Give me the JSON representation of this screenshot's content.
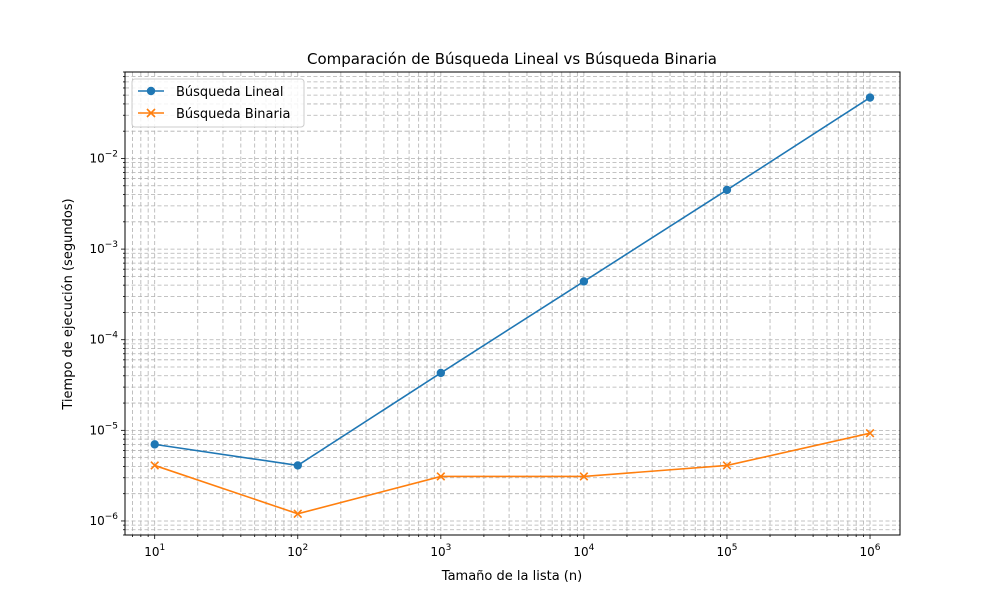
{
  "chart_data": {
    "type": "line",
    "title": "Comparación de Búsqueda Lineal vs Búsqueda Binaria",
    "xlabel": "Tamaño de la lista (n)",
    "ylabel": "Tiempo de ejecución (segundos)",
    "xscale": "log",
    "yscale": "log",
    "xlim": [
      6.2,
      1620000
    ],
    "ylim": [
      7e-07,
      0.09
    ],
    "x": [
      10,
      100,
      1000,
      10000,
      100000,
      1000000
    ],
    "x_tick_labels": [
      {
        "base": "10",
        "exp": "1"
      },
      {
        "base": "10",
        "exp": "2"
      },
      {
        "base": "10",
        "exp": "3"
      },
      {
        "base": "10",
        "exp": "4"
      },
      {
        "base": "10",
        "exp": "5"
      },
      {
        "base": "10",
        "exp": "6"
      }
    ],
    "y_ticks": [
      1e-06,
      1e-05,
      0.0001,
      0.001,
      0.01
    ],
    "y_tick_labels": [
      {
        "base": "10",
        "exp": "−6"
      },
      {
        "base": "10",
        "exp": "−5"
      },
      {
        "base": "10",
        "exp": "−4"
      },
      {
        "base": "10",
        "exp": "−3"
      },
      {
        "base": "10",
        "exp": "−2"
      }
    ],
    "grid": "major and minor, dashed",
    "legend_position": "top-left",
    "series": [
      {
        "name": "Búsqueda Lineal",
        "color": "#1f77b4",
        "marker": "circle",
        "values": [
          7e-06,
          4.1e-06,
          4.3e-05,
          0.00044,
          0.0045,
          0.047
        ]
      },
      {
        "name": "Búsqueda Binaria",
        "color": "#ff7f0e",
        "marker": "x",
        "values": [
          4.1e-06,
          1.2e-06,
          3.1e-06,
          3.1e-06,
          4.1e-06,
          9.3e-06
        ]
      }
    ]
  }
}
